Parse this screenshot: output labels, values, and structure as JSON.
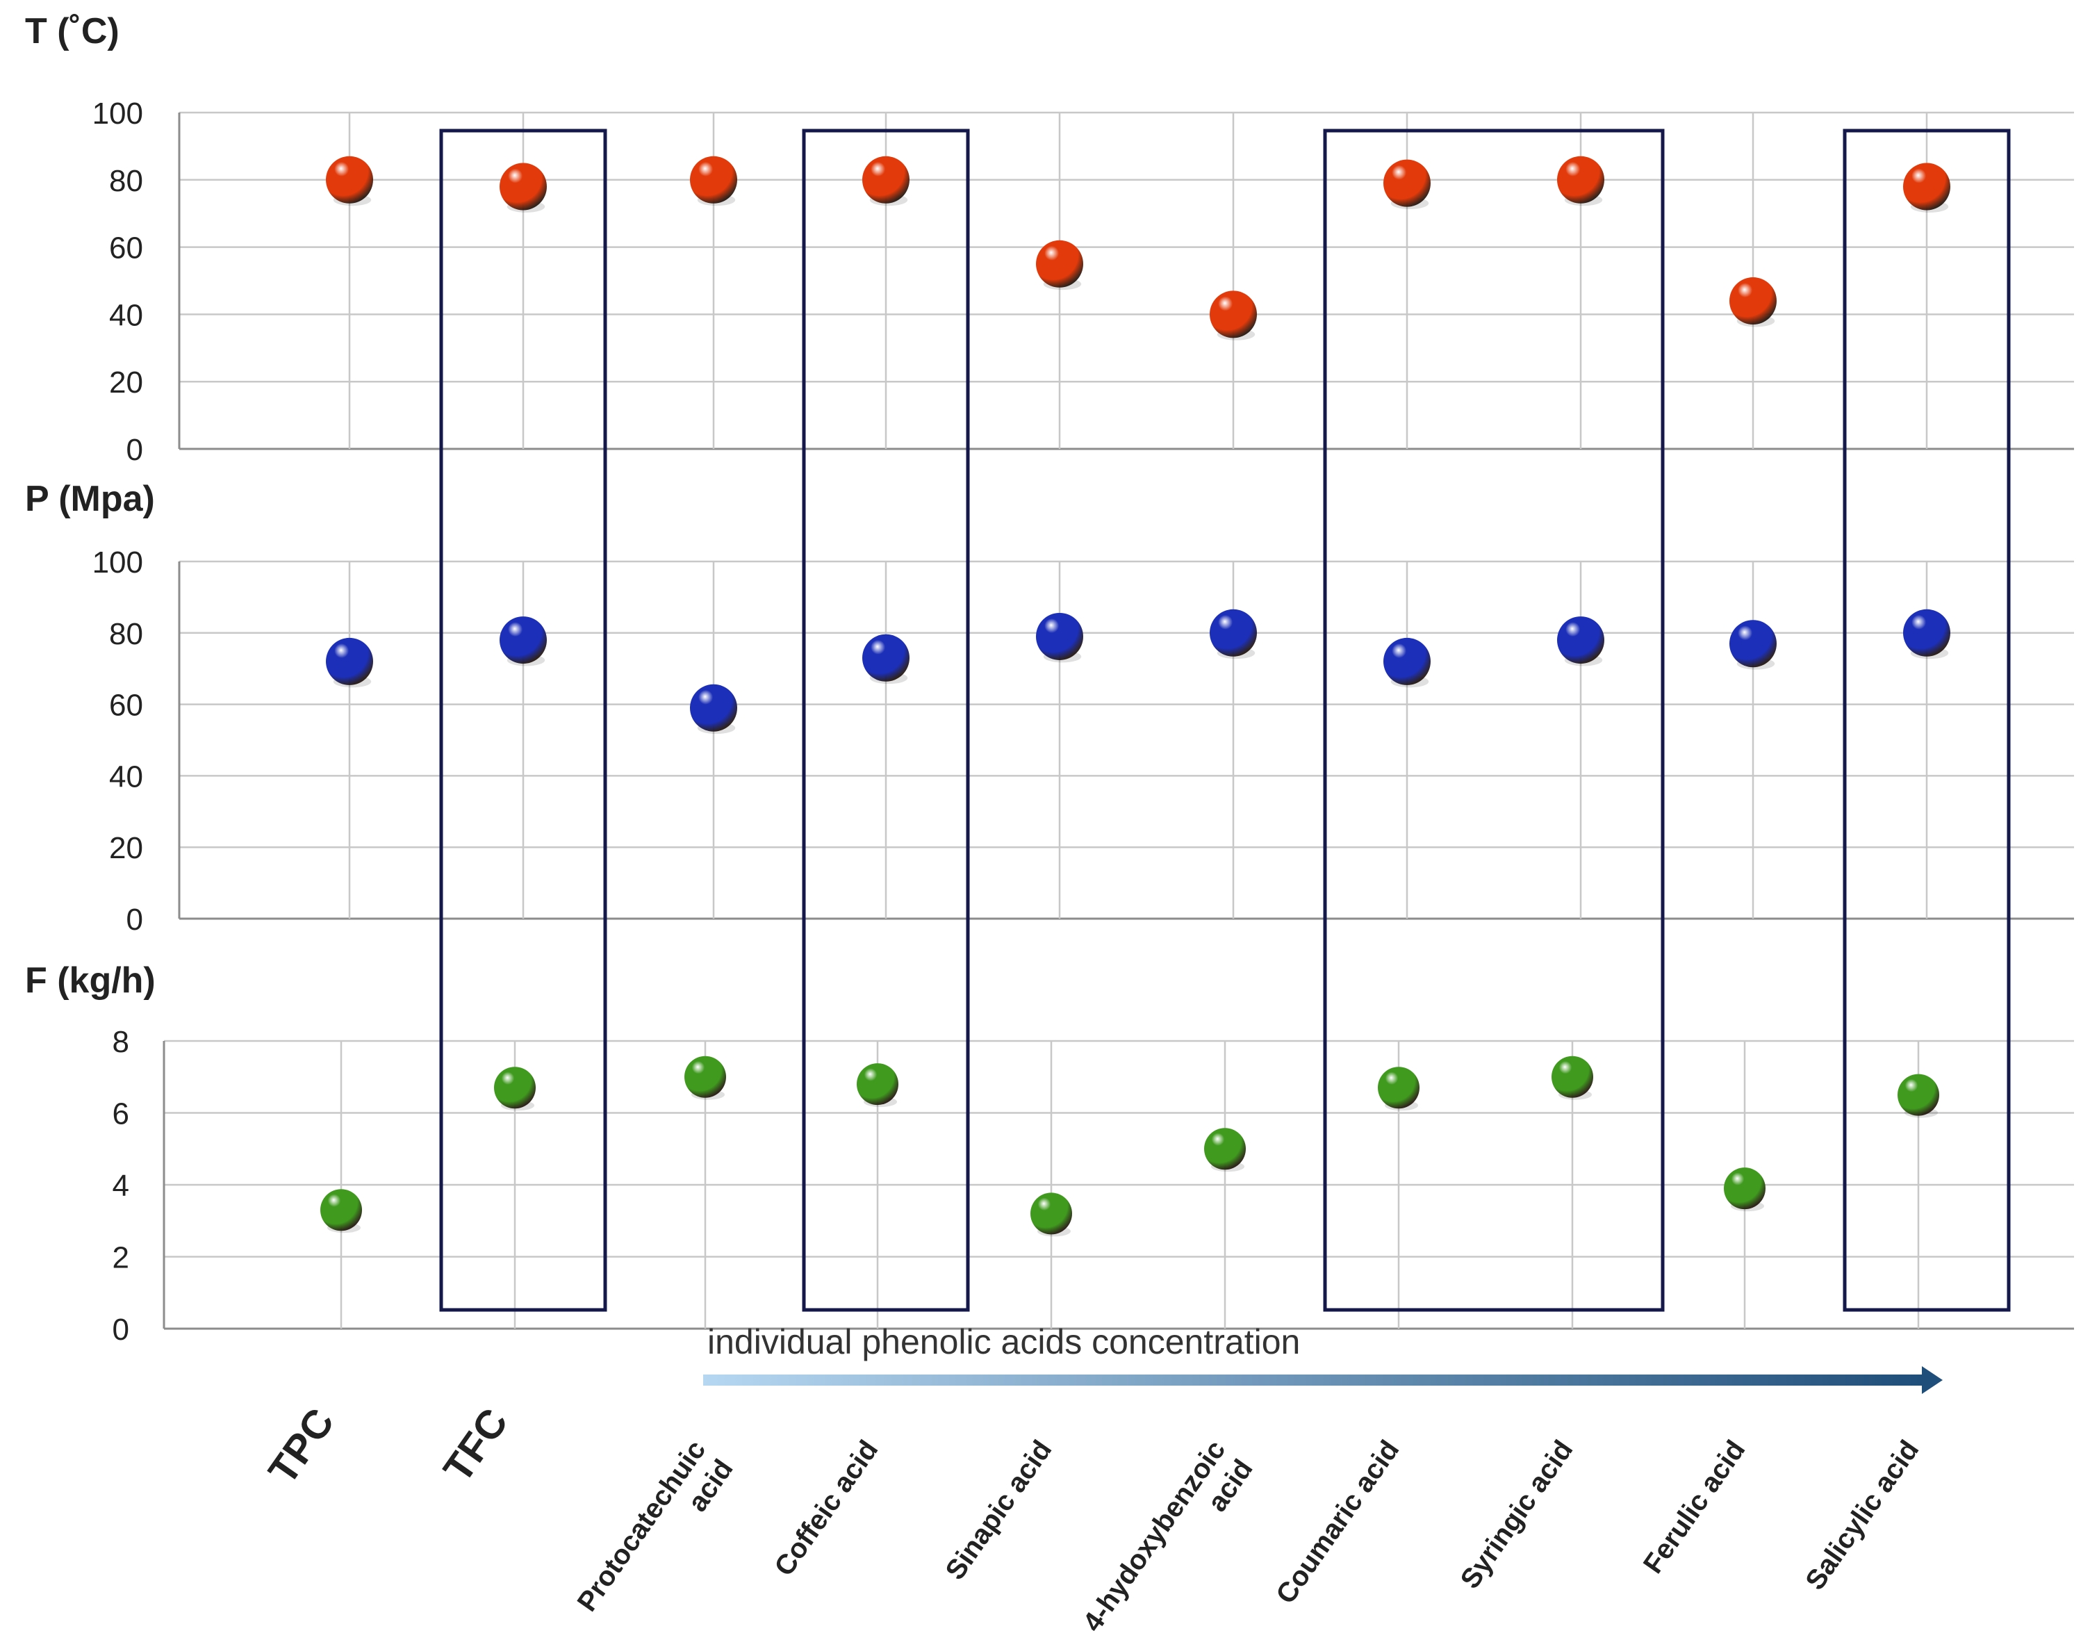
{
  "colors": {
    "temperature": "#e23a0a",
    "pressure": "#1c2fb8",
    "flow": "#3f9a1e",
    "box_stroke": "#14184a",
    "grid": "#c8c8c8",
    "axis": "#8c8c8c",
    "text": "#222222",
    "arrow_start": "#b6d7f1",
    "arrow_end": "#1f4e7a"
  },
  "annotation": {
    "text": "individual phenolic acids concentration"
  },
  "chart_data": {
    "type": "scatter",
    "categories": [
      {
        "label": "TPC",
        "lines": [
          "TPC"
        ],
        "bold": true
      },
      {
        "label": "TFC",
        "lines": [
          "TFC"
        ],
        "bold": true
      },
      {
        "label": "Protocatechuic acid",
        "lines": [
          "Protocatechuic",
          "acid"
        ],
        "bold": false
      },
      {
        "label": "Coffeic acid",
        "lines": [
          "Coffeic acid"
        ],
        "bold": false
      },
      {
        "label": "Sinapic acid",
        "lines": [
          "Sinapic acid"
        ],
        "bold": false
      },
      {
        "label": "4-hydoxybenzoic acid",
        "lines": [
          "4-hydoxybenzoic",
          "acid"
        ],
        "bold": false
      },
      {
        "label": "Coumaric acid",
        "lines": [
          "Coumaric acid"
        ],
        "bold": false
      },
      {
        "label": "Syringic acid",
        "lines": [
          "Syringic acid"
        ],
        "bold": false
      },
      {
        "label": "Ferulic acid",
        "lines": [
          "Ferulic acid"
        ],
        "bold": false
      },
      {
        "label": "Salicylic acid",
        "lines": [
          "Salicylic acid"
        ],
        "bold": false
      }
    ],
    "panels": [
      {
        "ylabel": "T (˚C)",
        "ylim": [
          0,
          100
        ],
        "ticks": [
          "0",
          "20",
          "40",
          "60",
          "80",
          "100"
        ],
        "color_key": "temperature",
        "values": [
          80,
          78,
          80,
          80,
          55,
          40,
          79,
          80,
          44,
          78
        ]
      },
      {
        "ylabel": "P (Mpa)",
        "ylim": [
          0,
          100
        ],
        "ticks": [
          "0",
          "20",
          "40",
          "60",
          "80",
          "100"
        ],
        "color_key": "pressure",
        "values": [
          72,
          78,
          59,
          73,
          79,
          80,
          72,
          78,
          77,
          80
        ]
      },
      {
        "ylabel": "F (kg/h)",
        "ylim": [
          0,
          8
        ],
        "ticks": [
          "0",
          "2",
          "4",
          "6",
          "8"
        ],
        "color_key": "flow",
        "values": [
          3.3,
          6.7,
          7.0,
          6.8,
          3.2,
          5.0,
          6.7,
          7.0,
          3.9,
          6.5
        ]
      }
    ],
    "highlight_groups": [
      [
        1,
        1
      ],
      [
        3,
        3
      ],
      [
        6,
        7
      ],
      [
        9,
        9
      ]
    ],
    "grid": true
  }
}
